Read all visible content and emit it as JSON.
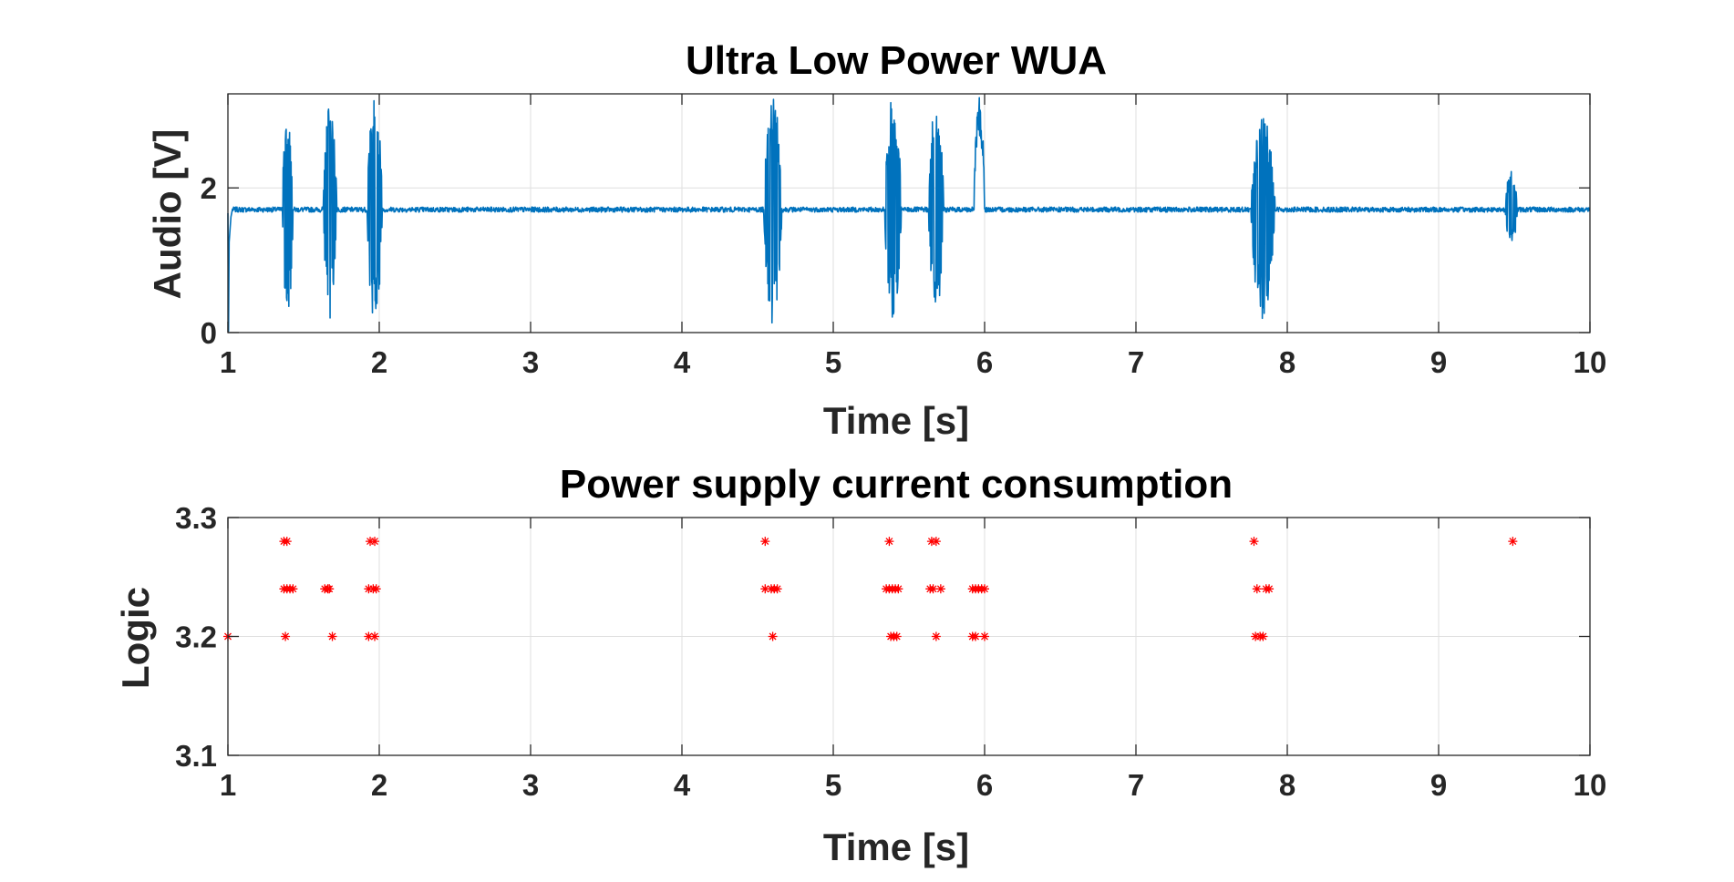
{
  "chart_data": [
    {
      "type": "line",
      "title": "Ultra Low Power WUA",
      "xlabel": "Time [s]",
      "ylabel": "Audio [V]",
      "xlim": [
        1,
        10
      ],
      "ylim": [
        0,
        3.3
      ],
      "xticks": [
        1,
        2,
        3,
        4,
        5,
        6,
        7,
        8,
        9,
        10
      ],
      "yticks": [
        0,
        2
      ],
      "grid": true,
      "color": "#0072bd",
      "baseline": 1.7,
      "bursts": [
        {
          "start": 1.36,
          "end": 1.43,
          "min": 0.15,
          "max": 3.27
        },
        {
          "start": 1.63,
          "end": 1.72,
          "min": 0.2,
          "max": 3.15
        },
        {
          "start": 1.92,
          "end": 2.02,
          "min": 0.12,
          "max": 3.27
        },
        {
          "start": 4.54,
          "end": 4.66,
          "min": 0.12,
          "max": 3.27
        },
        {
          "start": 5.34,
          "end": 5.45,
          "min": 0.15,
          "max": 3.27
        },
        {
          "start": 5.63,
          "end": 5.73,
          "min": 0.15,
          "max": 3.27
        },
        {
          "start": 5.93,
          "end": 6.0,
          "min": 1.7,
          "max": 3.27
        },
        {
          "start": 7.76,
          "end": 7.92,
          "min": 0.18,
          "max": 3.0
        },
        {
          "start": 9.44,
          "end": 9.52,
          "min": 1.2,
          "max": 2.25
        }
      ]
    },
    {
      "type": "scatter",
      "title": "Power supply current consumption",
      "xlabel": "Time [s]",
      "ylabel": "Logic",
      "xlim": [
        1,
        10
      ],
      "ylim": [
        3.1,
        3.3
      ],
      "xticks": [
        1,
        2,
        3,
        4,
        5,
        6,
        7,
        8,
        9,
        10
      ],
      "yticks": [
        3.1,
        3.2,
        3.3
      ],
      "grid": true,
      "marker": "*",
      "color": "#ff0000",
      "points": [
        {
          "x": 1.0,
          "y": 3.2
        },
        {
          "x": 1.37,
          "y": 3.28
        },
        {
          "x": 1.39,
          "y": 3.28
        },
        {
          "x": 1.37,
          "y": 3.24
        },
        {
          "x": 1.39,
          "y": 3.24
        },
        {
          "x": 1.41,
          "y": 3.24
        },
        {
          "x": 1.43,
          "y": 3.24
        },
        {
          "x": 1.38,
          "y": 3.2
        },
        {
          "x": 1.64,
          "y": 3.24
        },
        {
          "x": 1.66,
          "y": 3.24
        },
        {
          "x": 1.67,
          "y": 3.24
        },
        {
          "x": 1.69,
          "y": 3.2
        },
        {
          "x": 1.94,
          "y": 3.28
        },
        {
          "x": 1.97,
          "y": 3.28
        },
        {
          "x": 1.93,
          "y": 3.24
        },
        {
          "x": 1.96,
          "y": 3.24
        },
        {
          "x": 1.98,
          "y": 3.24
        },
        {
          "x": 1.93,
          "y": 3.2
        },
        {
          "x": 1.97,
          "y": 3.2
        },
        {
          "x": 4.55,
          "y": 3.28
        },
        {
          "x": 4.55,
          "y": 3.24
        },
        {
          "x": 4.59,
          "y": 3.24
        },
        {
          "x": 4.61,
          "y": 3.24
        },
        {
          "x": 4.63,
          "y": 3.24
        },
        {
          "x": 4.6,
          "y": 3.2
        },
        {
          "x": 5.37,
          "y": 3.28
        },
        {
          "x": 5.35,
          "y": 3.24
        },
        {
          "x": 5.37,
          "y": 3.24
        },
        {
          "x": 5.39,
          "y": 3.24
        },
        {
          "x": 5.41,
          "y": 3.24
        },
        {
          "x": 5.43,
          "y": 3.24
        },
        {
          "x": 5.38,
          "y": 3.2
        },
        {
          "x": 5.4,
          "y": 3.2
        },
        {
          "x": 5.42,
          "y": 3.2
        },
        {
          "x": 5.65,
          "y": 3.28
        },
        {
          "x": 5.68,
          "y": 3.28
        },
        {
          "x": 5.64,
          "y": 3.24
        },
        {
          "x": 5.66,
          "y": 3.24
        },
        {
          "x": 5.71,
          "y": 3.24
        },
        {
          "x": 5.68,
          "y": 3.2
        },
        {
          "x": 5.92,
          "y": 3.24
        },
        {
          "x": 5.94,
          "y": 3.24
        },
        {
          "x": 5.96,
          "y": 3.24
        },
        {
          "x": 5.98,
          "y": 3.24
        },
        {
          "x": 6.0,
          "y": 3.24
        },
        {
          "x": 5.92,
          "y": 3.2
        },
        {
          "x": 5.94,
          "y": 3.2
        },
        {
          "x": 6.0,
          "y": 3.2
        },
        {
          "x": 7.78,
          "y": 3.28
        },
        {
          "x": 7.8,
          "y": 3.24
        },
        {
          "x": 7.86,
          "y": 3.24
        },
        {
          "x": 7.88,
          "y": 3.24
        },
        {
          "x": 7.79,
          "y": 3.2
        },
        {
          "x": 7.82,
          "y": 3.2
        },
        {
          "x": 7.84,
          "y": 3.2
        },
        {
          "x": 9.49,
          "y": 3.28
        }
      ]
    }
  ]
}
